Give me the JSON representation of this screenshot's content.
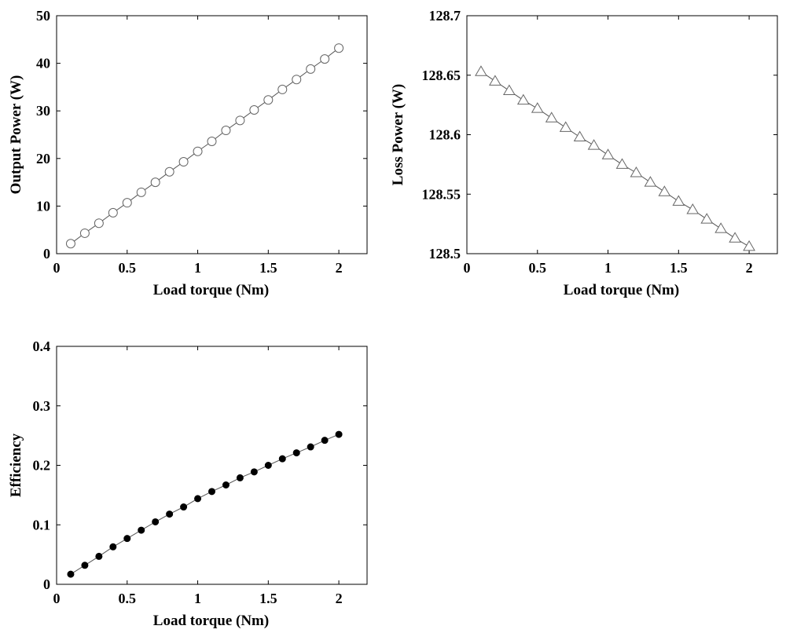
{
  "chart_data": [
    {
      "id": "output-power",
      "type": "line",
      "title": "",
      "xlabel": "Load torque (Nm)",
      "ylabel": "Output Power (W)",
      "xlim": [
        0,
        2.2
      ],
      "ylim": [
        0,
        50
      ],
      "xticks": [
        0,
        0.5,
        1,
        1.5,
        2
      ],
      "xtick_labels": [
        "0",
        "0.5",
        "1",
        "1.5",
        "2"
      ],
      "yticks": [
        0,
        10,
        20,
        30,
        40,
        50
      ],
      "ytick_labels": [
        "0",
        "10",
        "20",
        "30",
        "40",
        "50"
      ],
      "marker": "open-circle",
      "grid": false,
      "series": [
        {
          "name": "Output Power",
          "x": [
            0.1,
            0.2,
            0.3,
            0.4,
            0.5,
            0.6,
            0.7,
            0.8,
            0.9,
            1.0,
            1.1,
            1.2,
            1.3,
            1.4,
            1.5,
            1.6,
            1.7,
            1.8,
            1.9,
            2.0
          ],
          "y": [
            2.1,
            4.3,
            6.4,
            8.6,
            10.7,
            12.9,
            15.0,
            17.2,
            19.3,
            21.5,
            23.6,
            25.9,
            28.0,
            30.2,
            32.3,
            34.5,
            36.6,
            38.8,
            40.9,
            43.2
          ]
        }
      ]
    },
    {
      "id": "loss-power",
      "type": "line",
      "title": "",
      "xlabel": "Load torque (Nm)",
      "ylabel": "Loss Power (W)",
      "xlim": [
        0,
        2.2
      ],
      "ylim": [
        128.5,
        128.7
      ],
      "xticks": [
        0,
        0.5,
        1,
        1.5,
        2
      ],
      "xtick_labels": [
        "0",
        "0.5",
        "1",
        "1.5",
        "2"
      ],
      "yticks": [
        128.5,
        128.55,
        128.6,
        128.65,
        128.7
      ],
      "ytick_labels": [
        "128.5",
        "128.55",
        "128.6",
        "128.65",
        "128.7"
      ],
      "marker": "open-triangle",
      "grid": false,
      "series": [
        {
          "name": "Loss Power",
          "x": [
            0.1,
            0.2,
            0.3,
            0.4,
            0.5,
            0.6,
            0.7,
            0.8,
            0.9,
            1.0,
            1.1,
            1.2,
            1.3,
            1.4,
            1.5,
            1.6,
            1.7,
            1.8,
            1.9,
            2.0
          ],
          "y": [
            128.653,
            128.645,
            128.637,
            128.629,
            128.622,
            128.614,
            128.606,
            128.598,
            128.591,
            128.583,
            128.575,
            128.568,
            128.56,
            128.552,
            128.544,
            128.537,
            128.529,
            128.521,
            128.513,
            128.506
          ]
        }
      ]
    },
    {
      "id": "efficiency",
      "type": "line",
      "title": "",
      "xlabel": "Load torque (Nm)",
      "ylabel": "Efficiency",
      "xlim": [
        0,
        2.2
      ],
      "ylim": [
        0,
        0.4
      ],
      "xticks": [
        0,
        0.5,
        1,
        1.5,
        2
      ],
      "xtick_labels": [
        "0",
        "0.5",
        "1",
        "1.5",
        "2"
      ],
      "yticks": [
        0,
        0.1,
        0.2,
        0.3,
        0.4
      ],
      "ytick_labels": [
        "0",
        "0.1",
        "0.2",
        "0.3",
        "0.4"
      ],
      "marker": "filled-circle",
      "grid": false,
      "series": [
        {
          "name": "Efficiency",
          "x": [
            0.1,
            0.2,
            0.3,
            0.4,
            0.5,
            0.6,
            0.7,
            0.8,
            0.9,
            1.0,
            1.1,
            1.2,
            1.3,
            1.4,
            1.5,
            1.6,
            1.7,
            1.8,
            1.9,
            2.0
          ],
          "y": [
            0.017,
            0.032,
            0.047,
            0.063,
            0.077,
            0.091,
            0.105,
            0.118,
            0.13,
            0.144,
            0.156,
            0.167,
            0.179,
            0.189,
            0.2,
            0.211,
            0.221,
            0.231,
            0.242,
            0.252
          ]
        }
      ]
    }
  ]
}
